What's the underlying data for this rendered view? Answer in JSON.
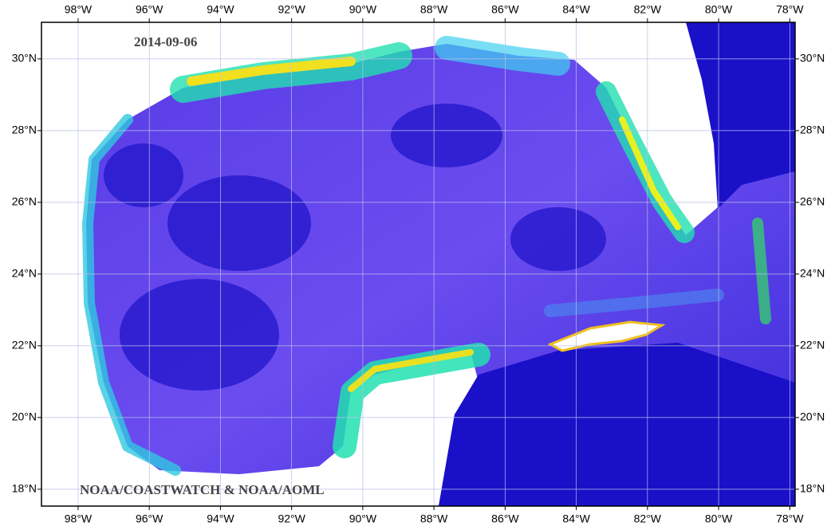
{
  "map": {
    "date": "2014-09-06",
    "credit": "NOAA/COASTWATCH & NOAA/AOML",
    "xlim": [
      -99.03,
      -77.85
    ],
    "ylim": [
      17.53,
      31.02
    ],
    "grid": true,
    "xticks": [
      {
        "value": -98,
        "label": "98°W"
      },
      {
        "value": -96,
        "label": "96°W"
      },
      {
        "value": -94,
        "label": "94°W"
      },
      {
        "value": -92,
        "label": "92°W"
      },
      {
        "value": -90,
        "label": "90°W"
      },
      {
        "value": -88,
        "label": "88°W"
      },
      {
        "value": -86,
        "label": "86°W"
      },
      {
        "value": -84,
        "label": "84°W"
      },
      {
        "value": -82,
        "label": "82°W"
      },
      {
        "value": -80,
        "label": "80°W"
      },
      {
        "value": -78,
        "label": "78°W"
      }
    ],
    "yticks": [
      {
        "value": 18,
        "label": "18°N"
      },
      {
        "value": 20,
        "label": "20°N"
      },
      {
        "value": 22,
        "label": "22°N"
      },
      {
        "value": 24,
        "label": "24°N"
      },
      {
        "value": 26,
        "label": "26°N"
      },
      {
        "value": 28,
        "label": "28°N"
      },
      {
        "value": 30,
        "label": "30°N"
      }
    ]
  }
}
